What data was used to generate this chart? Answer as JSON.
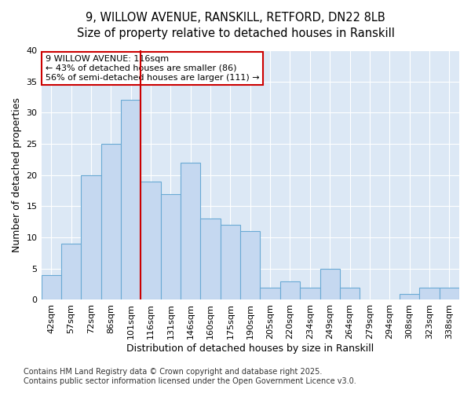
{
  "title_line1": "9, WILLOW AVENUE, RANSKILL, RETFORD, DN22 8LB",
  "title_line2": "Size of property relative to detached houses in Ranskill",
  "xlabel": "Distribution of detached houses by size in Ranskill",
  "ylabel": "Number of detached properties",
  "bar_labels": [
    "42sqm",
    "57sqm",
    "72sqm",
    "86sqm",
    "101sqm",
    "116sqm",
    "131sqm",
    "146sqm",
    "160sqm",
    "175sqm",
    "190sqm",
    "205sqm",
    "220sqm",
    "234sqm",
    "249sqm",
    "264sqm",
    "279sqm",
    "294sqm",
    "308sqm",
    "323sqm",
    "338sqm"
  ],
  "bar_values": [
    4,
    9,
    20,
    25,
    32,
    19,
    17,
    22,
    13,
    12,
    11,
    2,
    3,
    2,
    5,
    2,
    0,
    0,
    1,
    2,
    2
  ],
  "bar_color": "#c5d8f0",
  "bar_edgecolor": "#6aaad4",
  "highlight_index": 5,
  "highlight_line_color": "#cc0000",
  "annotation_line1": "9 WILLOW AVENUE: 116sqm",
  "annotation_line2": "← 43% of detached houses are smaller (86)",
  "annotation_line3": "56% of semi-detached houses are larger (111) →",
  "annotation_box_color": "#ffffff",
  "annotation_box_edgecolor": "#cc0000",
  "ylim": [
    0,
    40
  ],
  "yticks": [
    0,
    5,
    10,
    15,
    20,
    25,
    30,
    35,
    40
  ],
  "plot_bg_color": "#dce8f5",
  "grid_color": "#ffffff",
  "footer_text": "Contains HM Land Registry data © Crown copyright and database right 2025.\nContains public sector information licensed under the Open Government Licence v3.0.",
  "title_fontsize": 10.5,
  "axis_label_fontsize": 9,
  "tick_fontsize": 8,
  "annotation_fontsize": 8,
  "footer_fontsize": 7
}
